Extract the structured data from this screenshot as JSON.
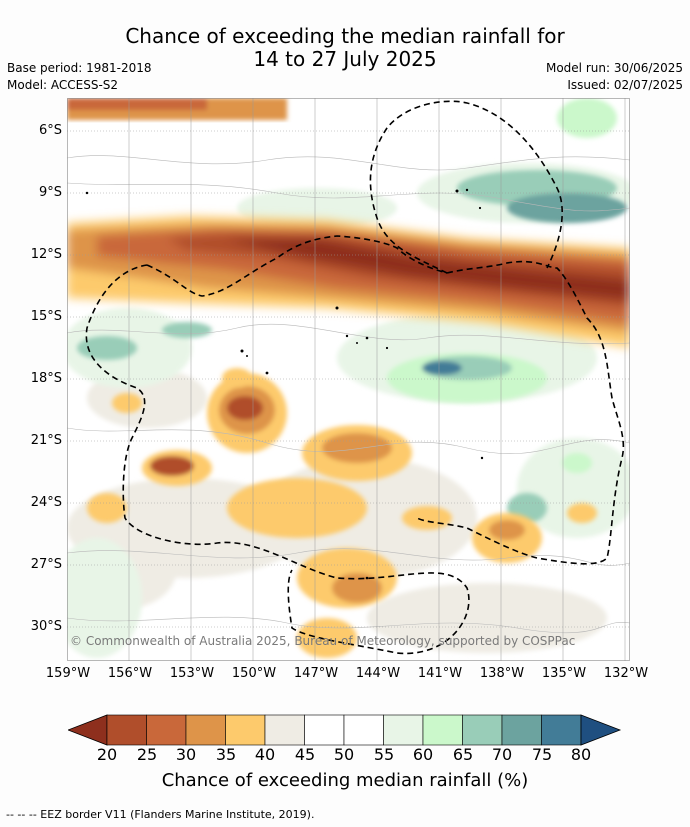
{
  "title_line1": "Chance of exceeding the median rainfall for",
  "title_line2": "14 to 27 July 2025",
  "base_period": "Base period: 1981-2018",
  "model": "Model: ACCESS-S2",
  "model_run": "Model run: 30/06/2025",
  "issued": "Issued: 02/07/2025",
  "copyright": "© Commonwealth of Australia 2025, Bureau of Meteorology, supported by COSPPac",
  "lat_labels": [
    "6°S",
    "9°S",
    "12°S",
    "15°S",
    "18°S",
    "21°S",
    "24°S",
    "27°S",
    "30°S"
  ],
  "lon_labels": [
    "159°W",
    "156°W",
    "153°W",
    "150°W",
    "147°W",
    "144°W",
    "141°W",
    "138°W",
    "135°W",
    "132°W"
  ],
  "colorbar_ticks": [
    "20",
    "25",
    "30",
    "35",
    "40",
    "45",
    "50",
    "55",
    "60",
    "65",
    "70",
    "75",
    "80"
  ],
  "colorbar_label": "Chance of exceeding median rainfall (%)",
  "colorbar_colors": [
    "#8e2f1d",
    "#b04e2b",
    "#c9683a",
    "#de9449",
    "#fdca6c",
    "#efece4",
    "#ffffff",
    "#ffffff",
    "#e8f5e7",
    "#cbf8cb",
    "#99cdb8",
    "#6ca39f",
    "#427c97",
    "#1f4f80"
  ],
  "footer": "--  --  -- EEZ border V11 (Flanders Marine Institute, 2019)."
}
